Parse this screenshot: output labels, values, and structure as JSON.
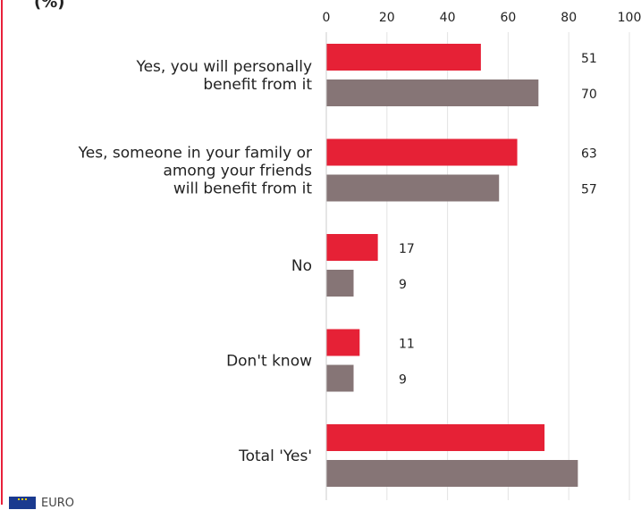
{
  "title_fragment": "(%)",
  "footer": {
    "source_text": "EURO",
    "flag_icon": "eu-flag-icon"
  },
  "colors": {
    "series_a": "#e62136",
    "series_b": "#867576",
    "grid": "#e3e3e3",
    "accent": "#e8203a"
  },
  "chart_data": {
    "type": "bar",
    "orientation": "horizontal",
    "x_ticks": [
      "0",
      "20",
      "40",
      "60",
      "80",
      "100"
    ],
    "xlim": [
      0,
      100
    ],
    "grid": true,
    "categories": [
      [
        "Yes, you will personally",
        "benefit from it"
      ],
      [
        "Yes, someone in your family or",
        "among your friends",
        "will benefit from it"
      ],
      [
        "No"
      ],
      [
        "Don't know"
      ],
      [
        "Total 'Yes'"
      ]
    ],
    "series": [
      {
        "values": [
          51,
          63,
          17,
          11,
          72
        ],
        "labels": [
          "51",
          "63",
          "17",
          "11",
          ""
        ]
      },
      {
        "values": [
          70,
          57,
          9,
          9,
          83
        ],
        "labels": [
          "70",
          "57",
          "9",
          "9",
          ""
        ]
      }
    ]
  }
}
